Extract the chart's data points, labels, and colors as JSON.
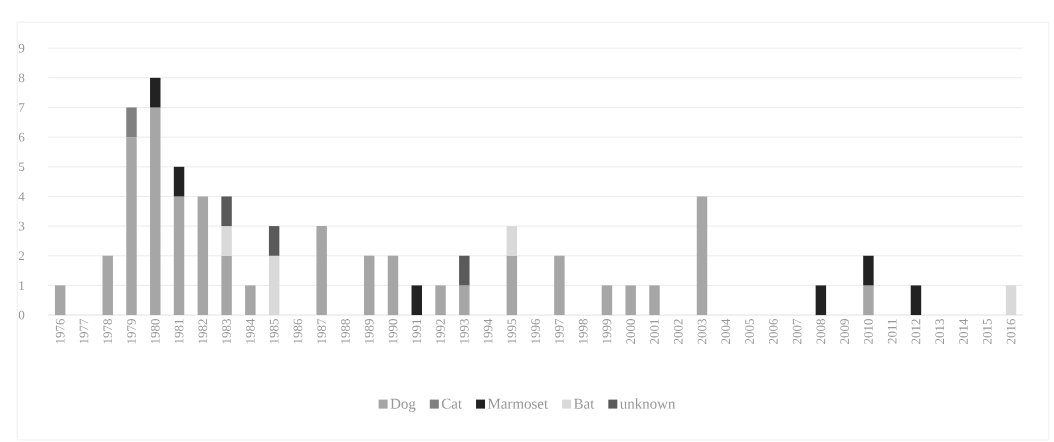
{
  "chart_data": {
    "type": "bar",
    "stacked": true,
    "categories": [
      "1976",
      "1977",
      "1978",
      "1979",
      "1980",
      "1981",
      "1982",
      "1983",
      "1984",
      "1985",
      "1986",
      "1987",
      "1988",
      "1989",
      "1990",
      "1991",
      "1992",
      "1993",
      "1994",
      "1995",
      "1996",
      "1997",
      "1998",
      "1999",
      "2000",
      "2001",
      "2002",
      "2003",
      "2004",
      "2005",
      "2006",
      "2007",
      "2008",
      "2009",
      "2010",
      "2011",
      "2012",
      "2013",
      "2014",
      "2015",
      "2016"
    ],
    "series": [
      {
        "name": "Dog",
        "color": "#a6a6a6",
        "values": [
          1,
          0,
          2,
          6,
          7,
          4,
          4,
          2,
          1,
          0,
          0,
          3,
          0,
          2,
          2,
          0,
          1,
          1,
          0,
          2,
          0,
          2,
          0,
          1,
          1,
          1,
          0,
          4,
          0,
          0,
          0,
          0,
          0,
          0,
          1,
          0,
          0,
          0,
          0,
          0,
          0
        ]
      },
      {
        "name": "Cat",
        "color": "#808080",
        "values": [
          0,
          0,
          0,
          1,
          0,
          0,
          0,
          0,
          0,
          0,
          0,
          0,
          0,
          0,
          0,
          0,
          0,
          0,
          0,
          0,
          0,
          0,
          0,
          0,
          0,
          0,
          0,
          0,
          0,
          0,
          0,
          0,
          0,
          0,
          0,
          0,
          0,
          0,
          0,
          0,
          0
        ]
      },
      {
        "name": "Marmoset",
        "color": "#222222",
        "values": [
          0,
          0,
          0,
          0,
          1,
          1,
          0,
          0,
          0,
          0,
          0,
          0,
          0,
          0,
          0,
          1,
          0,
          0,
          0,
          0,
          0,
          0,
          0,
          0,
          0,
          0,
          0,
          0,
          0,
          0,
          0,
          0,
          1,
          0,
          1,
          0,
          1,
          0,
          0,
          0,
          0
        ]
      },
      {
        "name": "Bat",
        "color": "#d9d9d9",
        "values": [
          0,
          0,
          0,
          0,
          0,
          0,
          0,
          1,
          0,
          2,
          0,
          0,
          0,
          0,
          0,
          0,
          0,
          0,
          0,
          1,
          0,
          0,
          0,
          0,
          0,
          0,
          0,
          0,
          0,
          0,
          0,
          0,
          0,
          0,
          0,
          0,
          0,
          0,
          0,
          0,
          1
        ]
      },
      {
        "name": "unknown",
        "color": "#5a5a5a",
        "values": [
          0,
          0,
          0,
          0,
          0,
          0,
          0,
          1,
          0,
          1,
          0,
          0,
          0,
          0,
          0,
          0,
          0,
          1,
          0,
          0,
          0,
          0,
          0,
          0,
          0,
          0,
          0,
          0,
          0,
          0,
          0,
          0,
          0,
          0,
          0,
          0,
          0,
          0,
          0,
          0,
          0
        ]
      }
    ],
    "ylim": [
      0,
      9
    ],
    "yticks": [
      0,
      1,
      2,
      3,
      4,
      5,
      6,
      7,
      8,
      9
    ],
    "grid": "y",
    "legend": "bottom"
  }
}
